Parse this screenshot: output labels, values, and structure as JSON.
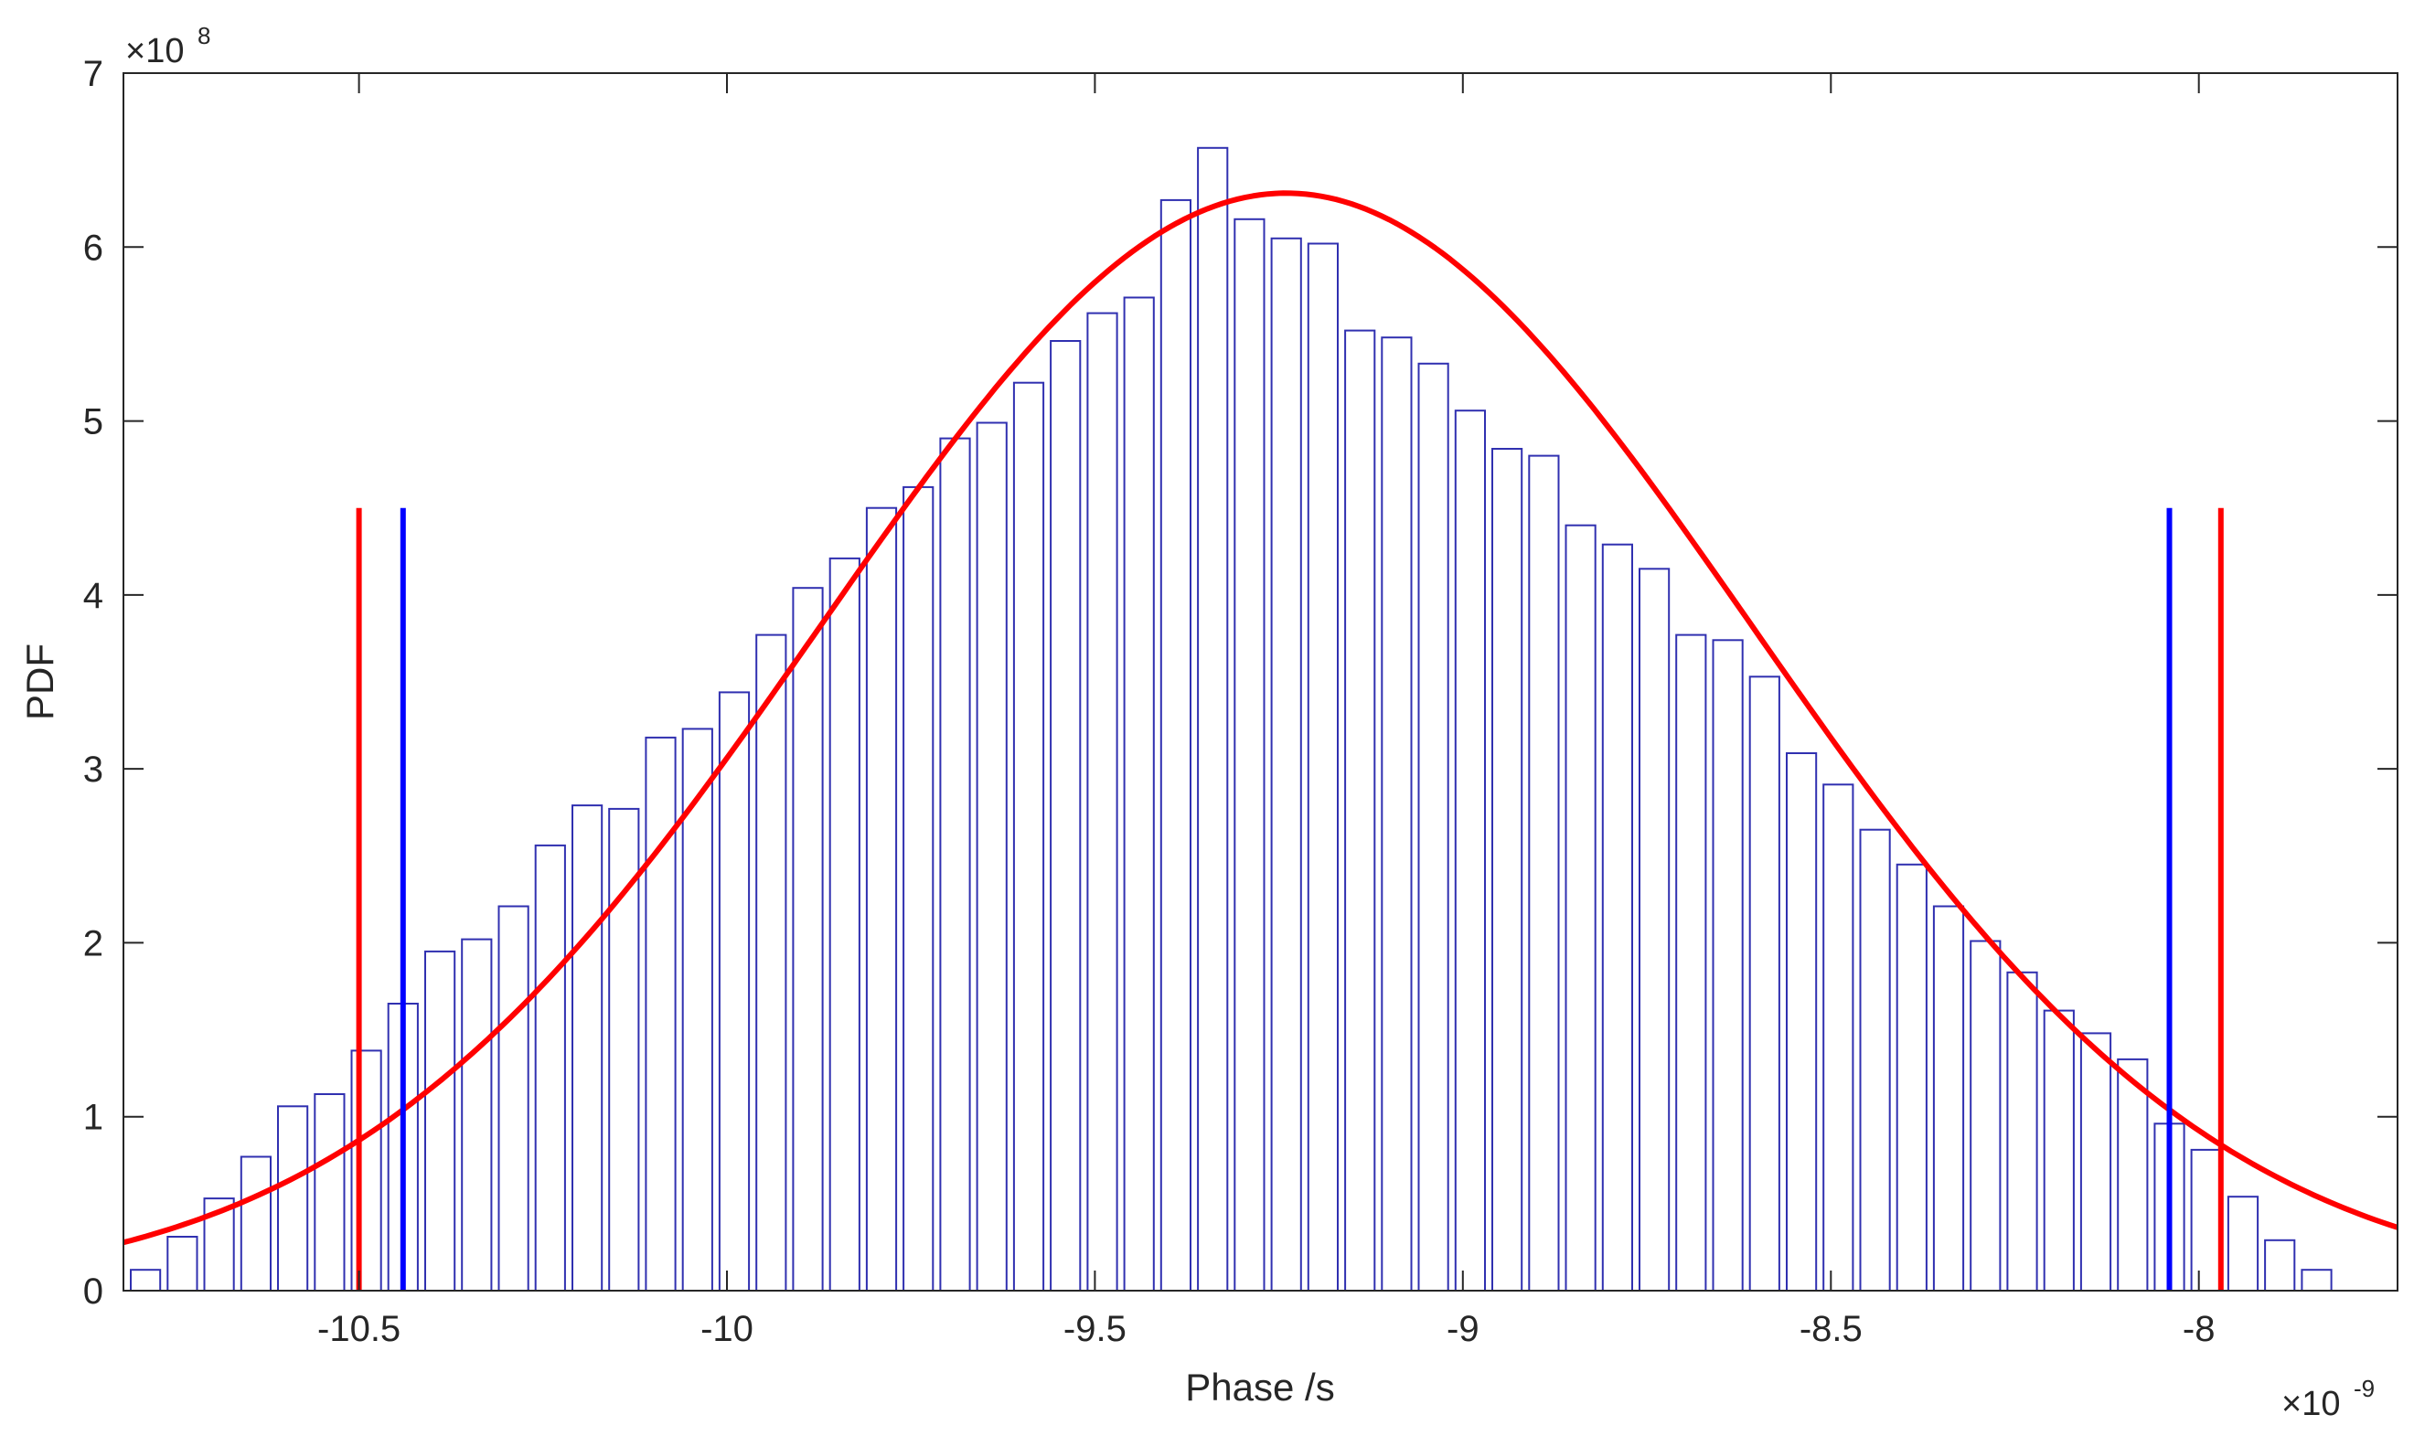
{
  "chart_data": {
    "type": "bar",
    "title": "",
    "xlabel": "Phase /s",
    "ylabel": "PDF",
    "x_exponent": {
      "base": "×10",
      "power": "-9"
    },
    "y_exponent": {
      "base": "×10",
      "power": "8"
    },
    "xlim": [
      -10.82,
      -7.73
    ],
    "ylim": [
      0,
      7
    ],
    "x_ticks": [
      -10.5,
      -10,
      -9.5,
      -9,
      -8.5,
      -8
    ],
    "x_tick_labels": [
      "-10.5",
      "-10",
      "-9.5",
      "-9",
      "-8.5",
      "-8"
    ],
    "y_ticks": [
      0,
      1,
      2,
      3,
      4,
      5,
      6,
      7
    ],
    "y_tick_labels": [
      "0",
      "1",
      "2",
      "3",
      "4",
      "5",
      "6",
      "7"
    ],
    "grid": false,
    "histogram": {
      "bin_start": -10.79,
      "bin_width": 0.05,
      "bar_fraction": 0.8,
      "values": [
        0.12,
        0.31,
        0.53,
        0.77,
        1.06,
        1.13,
        1.38,
        1.65,
        1.95,
        2.02,
        2.21,
        2.56,
        2.79,
        2.77,
        3.18,
        3.23,
        3.44,
        3.77,
        4.04,
        4.21,
        4.5,
        4.62,
        4.9,
        4.99,
        5.22,
        5.46,
        5.62,
        5.71,
        6.27,
        6.57,
        6.16,
        6.05,
        6.02,
        5.52,
        5.48,
        5.33,
        5.06,
        4.84,
        4.8,
        4.4,
        4.29,
        4.15,
        3.77,
        3.74,
        3.53,
        3.09,
        2.91,
        2.65,
        2.45,
        2.21,
        2.01,
        1.83,
        1.61,
        1.48,
        1.33,
        0.96,
        0.81,
        0.54,
        0.29,
        0.12
      ],
      "face_color": "#ffffff",
      "edge_color": "#3030b0"
    },
    "fit_curve": {
      "type": "gaussian",
      "mean": -9.24,
      "sigma": 0.632,
      "peak": 6.31,
      "x_range": [
        -10.82,
        -7.73
      ],
      "color": "#ff0000"
    },
    "vertical_lines": [
      {
        "x": -10.5,
        "y_top": 4.5,
        "color": "#ff0000"
      },
      {
        "x": -10.44,
        "y_top": 4.5,
        "color": "#0000ff"
      },
      {
        "x": -8.04,
        "y_top": 4.5,
        "color": "#0000ff"
      },
      {
        "x": -7.97,
        "y_top": 4.5,
        "color": "#ff0000"
      }
    ]
  }
}
